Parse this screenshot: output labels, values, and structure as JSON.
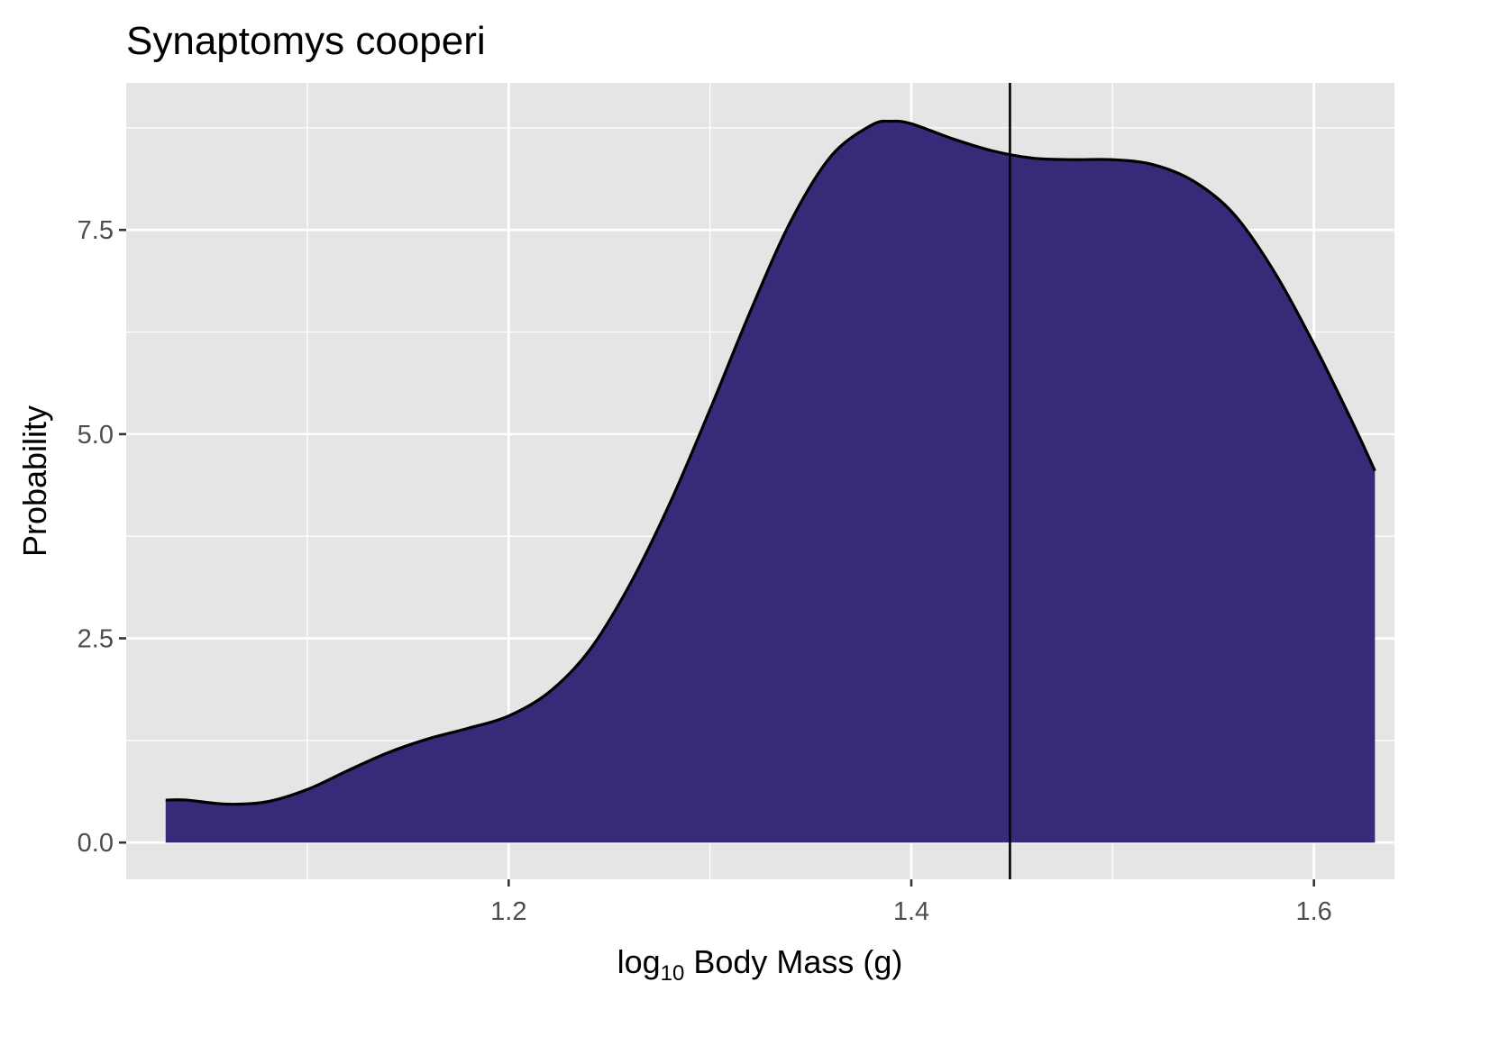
{
  "chart_data": {
    "type": "area",
    "title": "Synaptomys cooperi",
    "xlabel": {
      "prefix": "log",
      "subscript": "10",
      "text": "Body Mass",
      "unit": "(g)"
    },
    "ylabel": "Probability",
    "xlim": [
      1.01,
      1.64
    ],
    "ylim": [
      -0.45,
      9.3
    ],
    "x_ticks": [
      1.2,
      1.4,
      1.6
    ],
    "x_tick_labels": [
      "1.2",
      "1.4",
      "1.6"
    ],
    "x_minor_ticks": [
      1.1,
      1.3,
      1.5
    ],
    "y_ticks": [
      0,
      2.5,
      5,
      7.5
    ],
    "y_tick_labels": [
      "0.0",
      "2.5",
      "5.0",
      "7.5"
    ],
    "y_minor_ticks": [
      1.25,
      3.75,
      6.25,
      8.75
    ],
    "grid": true,
    "reference_line_x": 1.449,
    "colors": {
      "fill": "#372a78",
      "line": "#000000",
      "panel": "#e5e5e5",
      "grid": "#ffffff",
      "ref_line": "#000000"
    },
    "series": [
      {
        "name": "density",
        "x": [
          1.0296,
          1.04,
          1.06,
          1.08,
          1.1,
          1.12,
          1.14,
          1.16,
          1.18,
          1.2,
          1.22,
          1.24,
          1.26,
          1.28,
          1.3,
          1.32,
          1.34,
          1.36,
          1.38,
          1.39,
          1.4,
          1.42,
          1.44,
          1.46,
          1.48,
          1.5,
          1.52,
          1.54,
          1.56,
          1.58,
          1.6,
          1.62,
          1.6303
        ],
        "y": [
          0.52,
          0.52,
          0.47,
          0.5,
          0.65,
          0.88,
          1.1,
          1.27,
          1.4,
          1.55,
          1.84,
          2.35,
          3.15,
          4.15,
          5.3,
          6.5,
          7.6,
          8.4,
          8.78,
          8.83,
          8.8,
          8.62,
          8.47,
          8.38,
          8.36,
          8.36,
          8.3,
          8.1,
          7.7,
          7.0,
          6.1,
          5.1,
          4.55
        ]
      }
    ]
  }
}
